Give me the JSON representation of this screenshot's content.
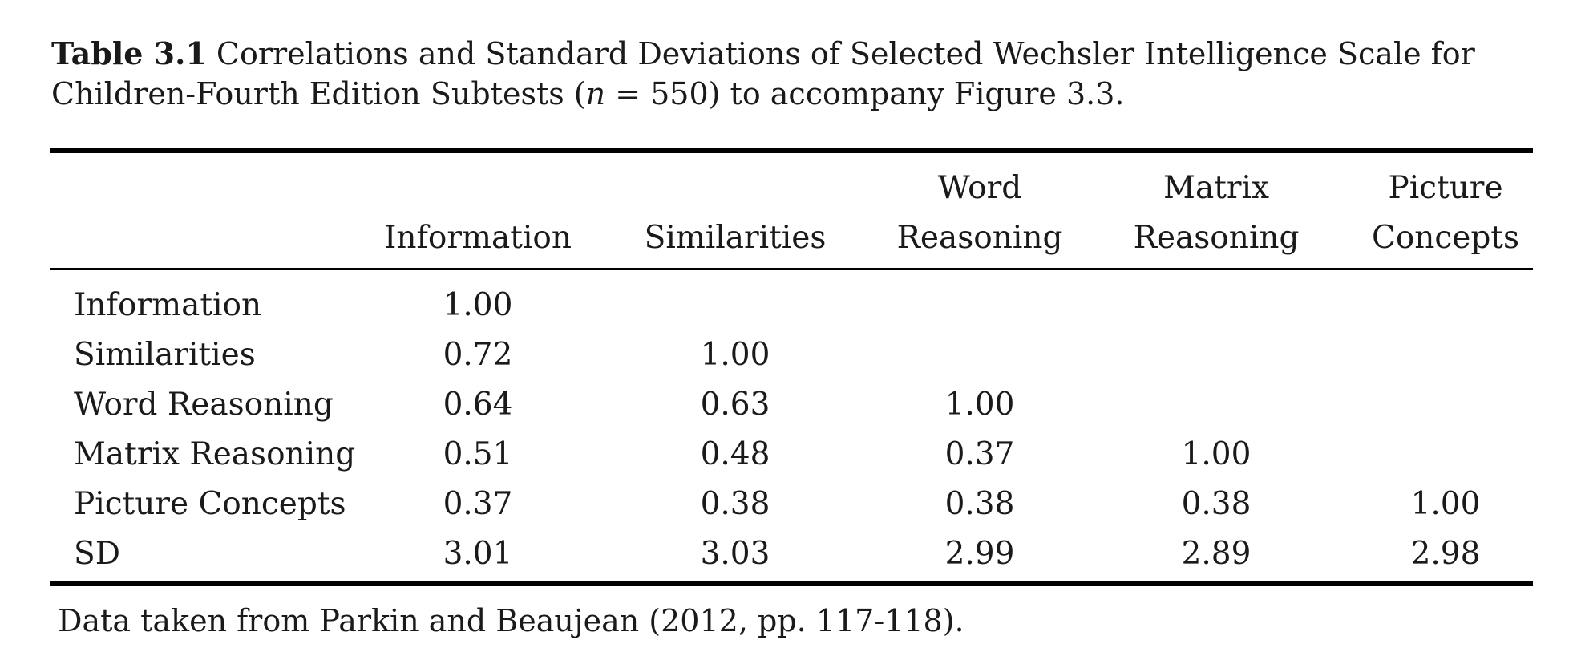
{
  "caption": {
    "label": "Table 3.1",
    "text_before_var": "Correlations and Standard Deviations of Selected Wechsler Intelligence Scale for Children-Fourth Edition Subtests (",
    "var": "n",
    "text_after_var": " = 550) to accompany Figure 3.3."
  },
  "table": {
    "columns": [
      {
        "line1": "",
        "line2": "Information"
      },
      {
        "line1": "",
        "line2": "Similarities"
      },
      {
        "line1": "Word",
        "line2": "Reasoning"
      },
      {
        "line1": "Matrix",
        "line2": "Reasoning"
      },
      {
        "line1": "Picture",
        "line2": "Concepts"
      }
    ],
    "rows": [
      {
        "label": "Information",
        "values": [
          "1.00",
          "",
          "",
          "",
          ""
        ]
      },
      {
        "label": "Similarities",
        "values": [
          "0.72",
          "1.00",
          "",
          "",
          ""
        ]
      },
      {
        "label": "Word Reasoning",
        "values": [
          "0.64",
          "0.63",
          "1.00",
          "",
          ""
        ]
      },
      {
        "label": "Matrix Reasoning",
        "values": [
          "0.51",
          "0.48",
          "0.37",
          "1.00",
          ""
        ]
      },
      {
        "label": "Picture Concepts",
        "values": [
          "0.37",
          "0.38",
          "0.38",
          "0.38",
          "1.00"
        ]
      },
      {
        "label": "SD",
        "values": [
          "3.01",
          "3.03",
          "2.99",
          "2.89",
          "2.98"
        ]
      }
    ]
  },
  "note": "Data taken from Parkin and Beaujean (2012, pp. 117-118)."
}
